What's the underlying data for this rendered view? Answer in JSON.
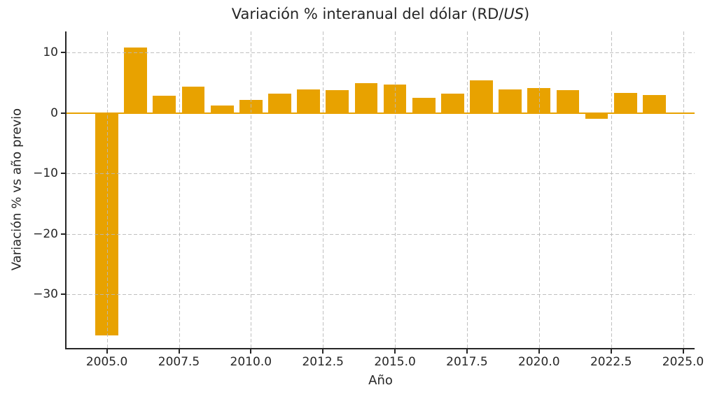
{
  "title_parts": {
    "pre": "Variación % interanual del dólar (RD/",
    "italic": "US",
    "post": ")"
  },
  "chart_data": {
    "type": "bar",
    "title": "Variación % interanual del dólar (RD/US)",
    "xlabel": "Año",
    "ylabel": "Variación % vs año previo",
    "categories": [
      2005,
      2006,
      2007,
      2008,
      2009,
      2010,
      2011,
      2012,
      2013,
      2014,
      2015,
      2016,
      2017,
      2018,
      2019,
      2020,
      2021,
      2022,
      2023,
      2024
    ],
    "values": [
      -36.8,
      10.8,
      2.9,
      4.4,
      1.3,
      2.2,
      3.2,
      3.9,
      3.8,
      4.9,
      4.7,
      2.5,
      3.2,
      5.4,
      3.9,
      4.1,
      3.8,
      -1.0,
      3.3,
      3.0
    ],
    "bar_width": 0.8,
    "xlim": [
      2003.6,
      2025.4
    ],
    "ylim": [
      -38.9,
      13.5
    ],
    "xtick_values": [
      2005.0,
      2007.5,
      2010.0,
      2012.5,
      2015.0,
      2017.5,
      2020.0,
      2022.5,
      2025.0
    ],
    "xtick_labels": [
      "2005.0",
      "2007.5",
      "2010.0",
      "2012.5",
      "2015.0",
      "2017.5",
      "2020.0",
      "2022.5",
      "2025.0"
    ],
    "ytick_values": [
      10,
      0,
      -10,
      -20,
      -30
    ],
    "ytick_labels": [
      "10",
      "0",
      "−10",
      "−20",
      "−30"
    ],
    "grid": true,
    "grid_style": "dashed",
    "grid_over_bars": true,
    "zero_line": true,
    "legend": false,
    "colors": {
      "bar": "#E8A200",
      "zero_line": "#E8A200",
      "grid": "#bdbdbd",
      "spine": "#262626",
      "text": "#262626"
    }
  }
}
